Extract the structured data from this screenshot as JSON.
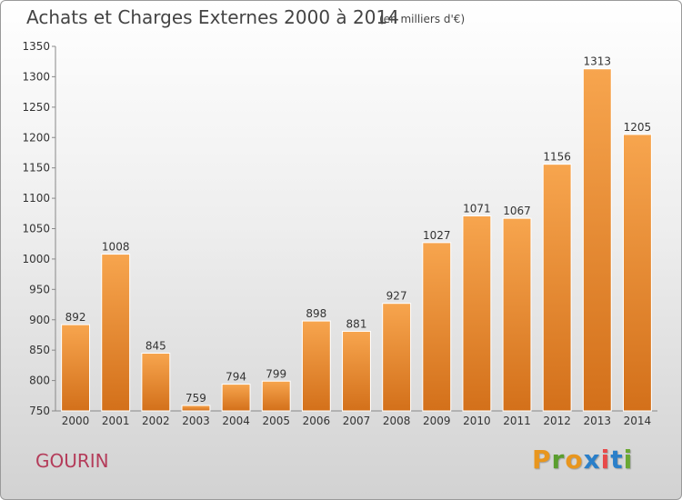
{
  "header": {
    "title": "Achats et Charges Externes 2000 à 2014",
    "unit": "(en milliers d'€)"
  },
  "footer": {
    "commune": "GOURIN",
    "logo": "Proxiti",
    "logo_colors": [
      "#e8961e",
      "#5a9e2e",
      "#e8961e",
      "#2a7fc9",
      "#e84a4a",
      "#2a7fc9",
      "#6aa832"
    ]
  },
  "chart_data": {
    "type": "bar",
    "title": "Achats et Charges Externes 2000 à 2014",
    "categories": [
      "2000",
      "2001",
      "2002",
      "2003",
      "2004",
      "2005",
      "2006",
      "2007",
      "2008",
      "2009",
      "2010",
      "2011",
      "2012",
      "2013",
      "2014"
    ],
    "values": [
      892,
      1008,
      845,
      759,
      794,
      799,
      898,
      881,
      927,
      1027,
      1071,
      1067,
      1156,
      1313,
      1205
    ],
    "ylim": [
      750,
      1350
    ],
    "yticks": [
      750,
      800,
      850,
      900,
      950,
      1000,
      1050,
      1100,
      1150,
      1200,
      1250,
      1300,
      1350
    ],
    "grid": false,
    "bar_color": "#e8862a"
  }
}
